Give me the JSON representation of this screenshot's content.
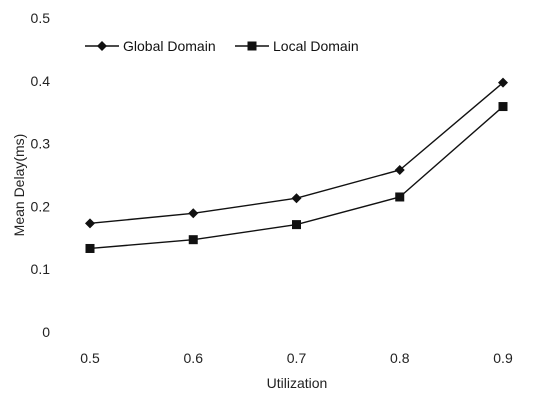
{
  "chart_data": {
    "type": "line",
    "title": "",
    "xlabel": "Utilization",
    "ylabel": "Mean Delay(ms)",
    "x": [
      0.5,
      0.6,
      0.7,
      0.8,
      0.9
    ],
    "x_tick_labels": [
      "0.5",
      "0.6",
      "0.7",
      "0.8",
      "0.9"
    ],
    "ylim": [
      0,
      0.5
    ],
    "y_ticks": [
      0,
      0.1,
      0.2,
      0.3,
      0.4,
      0.5
    ],
    "y_tick_labels": [
      "0",
      "0.1",
      "0.2",
      "0.3",
      "0.4",
      "0.5"
    ],
    "grid": false,
    "legend_position": "top-left",
    "series": [
      {
        "name": "Global Domain",
        "marker": "diamond",
        "values": [
          0.173,
          0.189,
          0.213,
          0.258,
          0.397
        ]
      },
      {
        "name": "Local Domain",
        "marker": "square",
        "values": [
          0.133,
          0.147,
          0.171,
          0.215,
          0.359
        ]
      }
    ],
    "colors": {
      "line": "#111111",
      "background": "#ffffff"
    }
  }
}
